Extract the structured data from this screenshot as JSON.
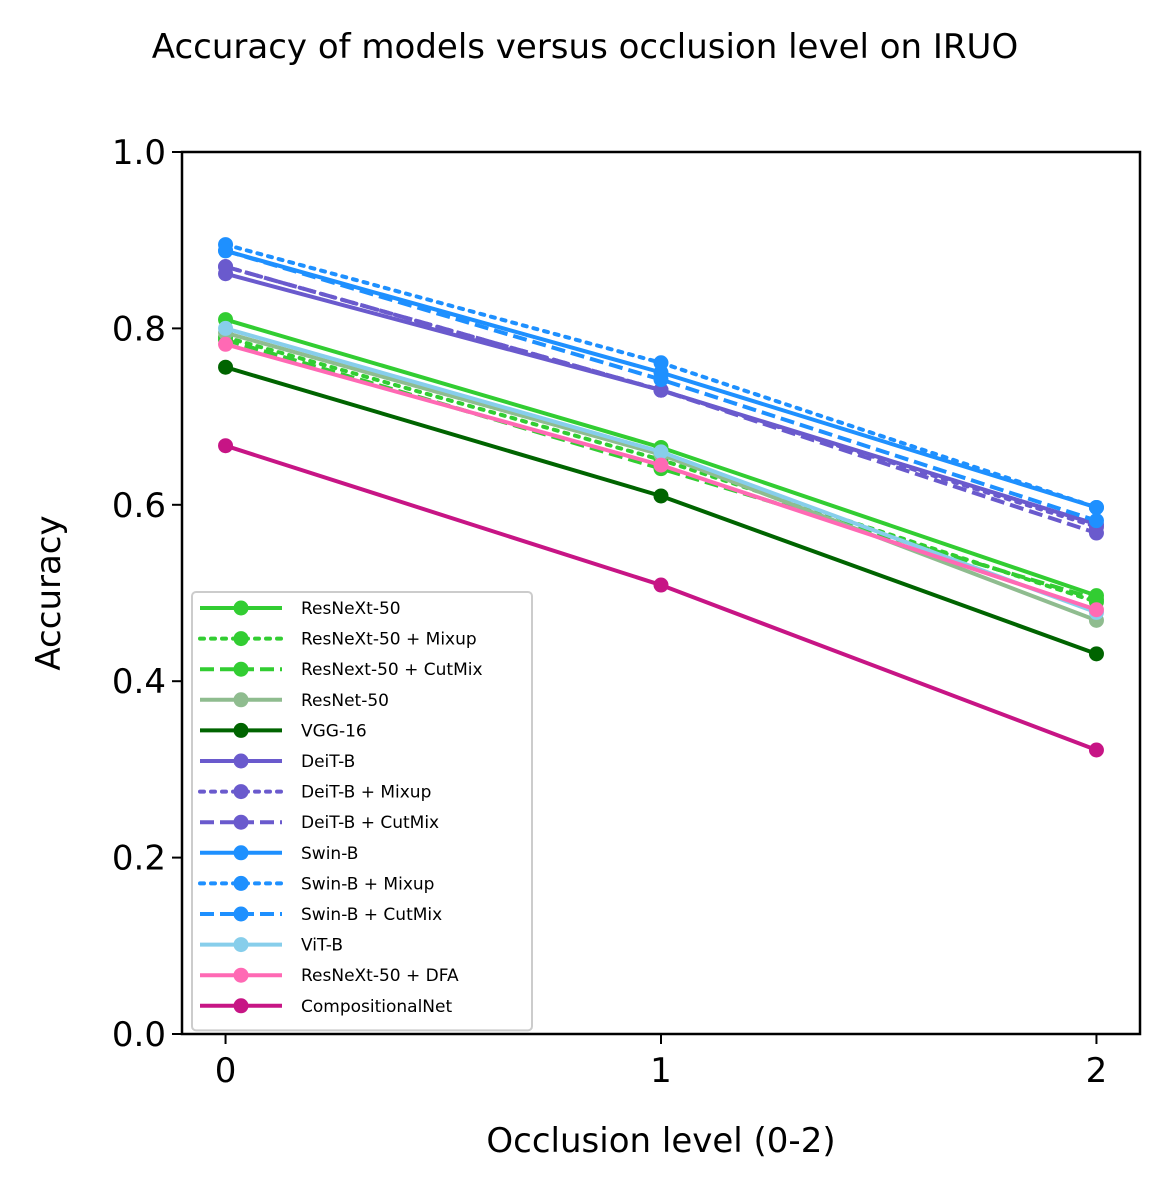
{
  "chart_data": {
    "type": "line",
    "title": "Accuracy of models versus occlusion level on IRUO",
    "xlabel": "Occlusion level (0-2)",
    "ylabel": "Accuracy",
    "x": [
      0,
      1,
      2
    ],
    "xticks": [
      "0",
      "1",
      "2"
    ],
    "yticks": [
      "0.0",
      "0.2",
      "0.4",
      "0.6",
      "0.8",
      "1.0"
    ],
    "xlim": [
      -0.1,
      2.1
    ],
    "ylim": [
      0.0,
      1.0
    ],
    "grid": false,
    "legend_position": "lower-left",
    "series": [
      {
        "name": "ResNeXt-50",
        "values": [
          0.81,
          0.665,
          0.497
        ],
        "color": "#32cd32",
        "style": "solid"
      },
      {
        "name": "ResNeXt-50 + Mixup",
        "values": [
          0.79,
          0.651,
          0.49
        ],
        "color": "#32cd32",
        "style": "dotted"
      },
      {
        "name": "ResNext-50 + CutMix",
        "values": [
          0.787,
          0.641,
          0.493
        ],
        "color": "#32cd32",
        "style": "dashed"
      },
      {
        "name": "ResNet-50",
        "values": [
          0.795,
          0.657,
          0.469
        ],
        "color": "#8fbc8f",
        "style": "solid"
      },
      {
        "name": "VGG-16",
        "values": [
          0.756,
          0.61,
          0.431
        ],
        "color": "#006400",
        "style": "solid"
      },
      {
        "name": "DeiT-B",
        "values": [
          0.862,
          0.73,
          0.578
        ],
        "color": "#6a5acd",
        "style": "solid"
      },
      {
        "name": "DeiT-B + Mixup",
        "values": [
          0.87,
          0.73,
          0.575
        ],
        "color": "#6a5acd",
        "style": "dotted"
      },
      {
        "name": "DeiT-B + CutMix",
        "values": [
          0.87,
          0.73,
          0.568
        ],
        "color": "#6a5acd",
        "style": "dashed"
      },
      {
        "name": "Swin-B",
        "values": [
          0.888,
          0.75,
          0.597
        ],
        "color": "#1e90ff",
        "style": "solid"
      },
      {
        "name": "Swin-B + Mixup",
        "values": [
          0.895,
          0.761,
          0.597
        ],
        "color": "#1e90ff",
        "style": "dotted"
      },
      {
        "name": "Swin-B + CutMix",
        "values": [
          0.888,
          0.742,
          0.582
        ],
        "color": "#1e90ff",
        "style": "dashed"
      },
      {
        "name": "ViT-B",
        "values": [
          0.8,
          0.66,
          0.478
        ],
        "color": "#87ceeb",
        "style": "solid"
      },
      {
        "name": "ResNeXt-50 + DFA",
        "values": [
          0.782,
          0.645,
          0.481
        ],
        "color": "#ff69b4",
        "style": "solid"
      },
      {
        "name": "CompositionalNet",
        "values": [
          0.667,
          0.509,
          0.322
        ],
        "color": "#c71585",
        "style": "solid"
      }
    ]
  }
}
